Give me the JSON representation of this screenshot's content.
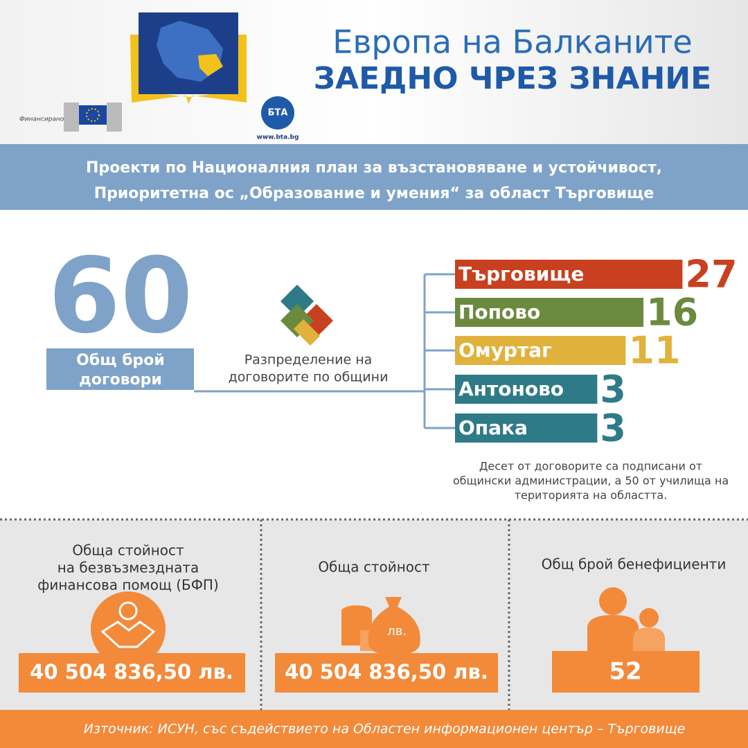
{
  "header": {
    "title": "Европа на Балканите",
    "subtitle": "ЗАЕДНО ЧРЕЗ ЗНАНИЕ",
    "funded_by": "Финансирано от",
    "bta_logo": "БТА",
    "bta_url": "www.bta.bg"
  },
  "banner": {
    "lines": [
      "Проекти по Националния план за възстановяване и устойчивост,",
      "Приоритетна ос „Образование и умения“ за област Търговище"
    ]
  },
  "total": {
    "value": "60",
    "label_lines": [
      "Общ брой",
      "договори"
    ]
  },
  "caption_lines": [
    "Разпределение на",
    "договорите по общини"
  ],
  "chart_data": {
    "type": "bar",
    "orientation": "horizontal",
    "categories": [
      "Търговище",
      "Попово",
      "Омуртаг",
      "Антоново",
      "Опака"
    ],
    "values": [
      27,
      16,
      11,
      3,
      3
    ],
    "colors": [
      "#c8401f",
      "#6b8a3e",
      "#e0b23c",
      "#2e7b87",
      "#2e7b87"
    ]
  },
  "note_lines": [
    "Десет от договорите са подписани от",
    "общински администрации, а 50 от училища на",
    "територията на областта."
  ],
  "stats": [
    {
      "title_lines": [
        "Обща стойност",
        "на безвъзмездната",
        "финансова помощ (БФП)"
      ],
      "value": "40 504 836,50 лв."
    },
    {
      "title_lines": [
        "Обща стойност"
      ],
      "icon_text": "лв.",
      "value": "40 504 836,50 лв."
    },
    {
      "title_lines": [
        "Общ брой бенефициенти"
      ],
      "value": "52"
    }
  ],
  "source": "Източник: ИСУН, със съдействието на Областен информационен център – Търговище"
}
